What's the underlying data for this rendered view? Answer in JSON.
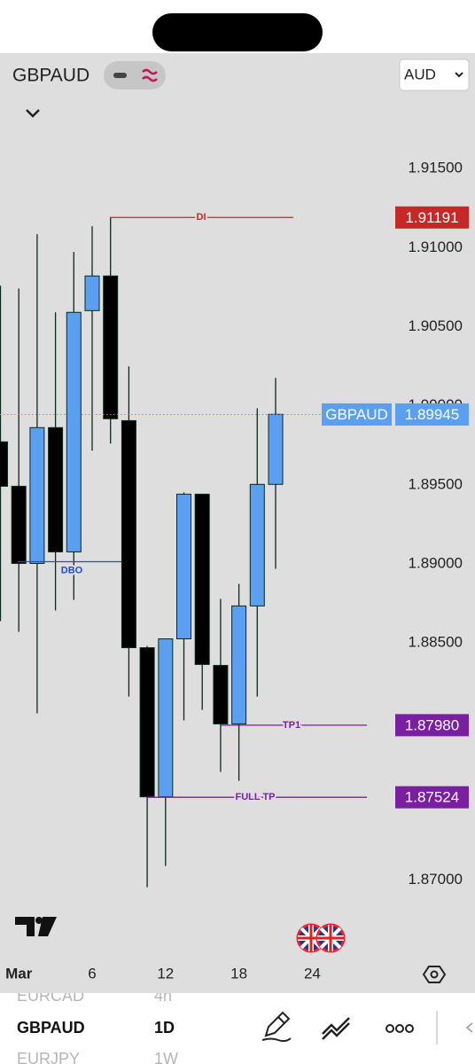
{
  "header": {
    "symbol": "GBPAUD",
    "currency": "AUD"
  },
  "chart_data": {
    "type": "candlestick",
    "categories": [
      null,
      "Mar",
      null,
      null,
      null,
      "6",
      null,
      null,
      null,
      "12",
      null,
      null,
      null,
      "18",
      null,
      null,
      null,
      "24"
    ],
    "open": [
      1.89772,
      1.89491,
      1.89003,
      1.89862,
      1.89076,
      1.90602,
      1.90821,
      1.89906,
      1.8847,
      1.87527,
      1.88526,
      1.89441,
      1.88358,
      1.87988,
      1.88734,
      1.89503,
      null,
      null
    ],
    "high": [
      1.90759,
      1.90742,
      1.91085,
      1.90591,
      1.90973,
      1.91135,
      1.91191,
      1.90249,
      1.88481,
      1.88526,
      1.89452,
      1.89441,
      1.88779,
      1.88874,
      1.89985,
      1.90176,
      null,
      null
    ],
    "low": [
      1.88638,
      1.88571,
      1.88055,
      1.88706,
      1.88773,
      1.89716,
      1.89761,
      1.88161,
      1.86955,
      1.8709,
      1.8801,
      1.88077,
      1.87685,
      1.87628,
      1.88161,
      1.88969,
      null,
      null
    ],
    "close": [
      1.89491,
      1.89003,
      1.89862,
      1.89076,
      1.90591,
      1.90821,
      1.89918,
      1.8847,
      1.87527,
      1.88526,
      1.89441,
      1.88364,
      1.87988,
      1.88734,
      1.89503,
      1.89946,
      null,
      null
    ],
    "up_color": "#5b9ff0",
    "down_color": "#000000",
    "ylim": [
      1.8651,
      1.9223
    ],
    "yticks": [
      {
        "value": 1.915,
        "label": "1.91500"
      },
      {
        "value": 1.91,
        "label": "1.91000"
      },
      {
        "value": 1.905,
        "label": "1.90500"
      },
      {
        "value": 1.9,
        "label": "1.90000"
      },
      {
        "value": 1.895,
        "label": "1.89500"
      },
      {
        "value": 1.89,
        "label": "1.89000"
      },
      {
        "value": 1.885,
        "label": "1.88500"
      },
      {
        "value": 1.88,
        "label": "1.88000"
      },
      {
        "value": 1.875,
        "label": "1.87500"
      },
      {
        "value": 1.87,
        "label": "1.87000"
      }
    ],
    "price_lines": [
      {
        "label": "DI",
        "value": 1.91191,
        "value_label": "1.91191",
        "color": "#c62828"
      },
      {
        "label": "DBO",
        "value": 1.89014,
        "color": "#1e4fc8"
      },
      {
        "label": "TP1",
        "value": 1.8798,
        "value_label": "1.87980",
        "color": "#7b1fa2"
      },
      {
        "label": "FULL TP",
        "value": 1.87524,
        "value_label": "1.87524",
        "color": "#7b1fa2"
      }
    ],
    "current_price": {
      "symbol": "GBPAUD",
      "value": 1.89945,
      "value_label": "1.89945",
      "color": "#5b9ff0"
    }
  },
  "watchlist": [
    {
      "symbol": "EURCAD",
      "interval": "4h"
    },
    {
      "symbol": "GBPAUD",
      "interval": "1D"
    },
    {
      "symbol": "EURJPY",
      "interval": "1W"
    }
  ]
}
